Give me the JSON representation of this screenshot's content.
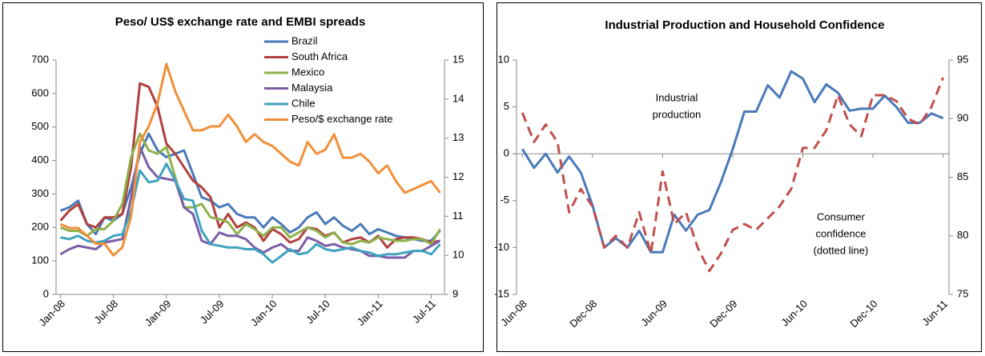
{
  "chart_data": [
    {
      "type": "line",
      "title": "Peso/ US$ exchange rate and EMBI spreads",
      "categories": [
        "Jan-08",
        null,
        null,
        null,
        null,
        null,
        "Jul-08",
        null,
        null,
        null,
        null,
        null,
        "Jan-09",
        null,
        null,
        null,
        null,
        null,
        "Jul-09",
        null,
        null,
        null,
        null,
        null,
        "Jan-10",
        null,
        null,
        null,
        null,
        null,
        "Jul-10",
        null,
        null,
        null,
        null,
        null,
        "Jan-11",
        null,
        null,
        null,
        null,
        null,
        "Jul-11",
        null
      ],
      "ylim": [
        0,
        700
      ],
      "yticks": [
        0,
        100,
        200,
        300,
        400,
        500,
        600,
        700
      ],
      "y2lim": [
        9,
        15
      ],
      "y2ticks": [
        9,
        10,
        11,
        12,
        13,
        14,
        15
      ],
      "grid": false,
      "legend": "top-right",
      "series": [
        {
          "name": "Brazil",
          "color": "#4a7ab8",
          "values": [
            250,
            260,
            280,
            210,
            180,
            230,
            220,
            240,
            320,
            420,
            480,
            430,
            410,
            420,
            430,
            360,
            290,
            280,
            260,
            270,
            240,
            230,
            230,
            200,
            230,
            210,
            185,
            200,
            230,
            245,
            210,
            230,
            205,
            190,
            210,
            180,
            195,
            185,
            175,
            170,
            165,
            160,
            160,
            190
          ]
        },
        {
          "name": "South Africa",
          "color": "#b0413e",
          "values": [
            220,
            250,
            270,
            210,
            200,
            230,
            230,
            240,
            380,
            630,
            620,
            560,
            450,
            420,
            380,
            340,
            320,
            290,
            200,
            240,
            200,
            215,
            200,
            160,
            195,
            180,
            155,
            165,
            200,
            195,
            175,
            185,
            155,
            165,
            170,
            155,
            175,
            140,
            165,
            170,
            170,
            165,
            155,
            160
          ]
        },
        {
          "name": "Mexico",
          "color": "#8fb04a",
          "values": [
            200,
            190,
            190,
            175,
            195,
            195,
            220,
            270,
            410,
            480,
            430,
            420,
            440,
            350,
            260,
            260,
            270,
            230,
            225,
            215,
            180,
            210,
            195,
            175,
            200,
            200,
            170,
            185,
            200,
            190,
            170,
            185,
            155,
            150,
            160,
            155,
            170,
            165,
            160,
            160,
            165,
            165,
            150,
            195
          ]
        },
        {
          "name": "Malaysia",
          "color": "#7b5ea7",
          "values": [
            120,
            135,
            145,
            140,
            135,
            155,
            160,
            165,
            290,
            440,
            380,
            350,
            345,
            340,
            260,
            240,
            160,
            150,
            185,
            175,
            175,
            165,
            140,
            125,
            140,
            150,
            130,
            130,
            170,
            160,
            145,
            150,
            140,
            135,
            130,
            115,
            115,
            110,
            110,
            110,
            130,
            130,
            145,
            160
          ]
        },
        {
          "name": "Chile",
          "color": "#3fa3c0",
          "values": [
            170,
            165,
            175,
            160,
            155,
            160,
            175,
            180,
            250,
            370,
            335,
            340,
            390,
            340,
            285,
            280,
            190,
            150,
            145,
            140,
            140,
            135,
            135,
            120,
            95,
            115,
            135,
            120,
            125,
            150,
            135,
            130,
            135,
            140,
            130,
            125,
            115,
            120,
            120,
            125,
            130,
            130,
            120,
            150
          ]
        },
        {
          "name": "Peso/$ exchange rate",
          "color": "#f0903a",
          "axis": "y2",
          "values": [
            10.8,
            10.7,
            10.7,
            10.5,
            10.3,
            10.3,
            10.0,
            10.2,
            11.0,
            12.9,
            13.3,
            13.9,
            14.9,
            14.2,
            13.7,
            13.2,
            13.2,
            13.3,
            13.3,
            13.6,
            13.3,
            12.9,
            13.1,
            12.9,
            12.8,
            12.6,
            12.4,
            12.3,
            12.9,
            12.6,
            12.7,
            13.1,
            12.5,
            12.5,
            12.6,
            12.4,
            12.1,
            12.3,
            11.9,
            11.6,
            11.7,
            11.8,
            11.9,
            11.6
          ]
        }
      ]
    },
    {
      "type": "line",
      "title": "Industrial Production and Household Confidence",
      "categories": [
        "Jun-08",
        null,
        null,
        null,
        null,
        null,
        "Dec-08",
        null,
        null,
        null,
        null,
        null,
        "Jun-09",
        null,
        null,
        null,
        null,
        null,
        "Dec-09",
        null,
        null,
        null,
        null,
        null,
        "Jun-10",
        null,
        null,
        null,
        null,
        null,
        "Dec-10",
        null,
        null,
        null,
        null,
        null,
        "Jun-11"
      ],
      "ylim": [
        -15,
        10
      ],
      "yticks": [
        -15,
        -10,
        -5,
        0,
        5,
        10
      ],
      "y2lim": [
        75,
        95
      ],
      "y2ticks": [
        75,
        80,
        85,
        90,
        95
      ],
      "grid": false,
      "annotations": [
        {
          "text": [
            "Industrial",
            "production"
          ]
        },
        {
          "text": [
            "Consumer",
            "confidence",
            "(dotted line)"
          ]
        }
      ],
      "series": [
        {
          "color": "#4a7ab8",
          "style": "solid",
          "values": [
            0.5,
            -1.5,
            0,
            -2,
            -0.3,
            -2,
            -5.5,
            -10,
            -9,
            -10,
            -8.2,
            -10.5,
            -10.5,
            -6.5,
            -8.2,
            -6.5,
            -6,
            -3,
            0.5,
            4.5,
            4.5,
            7.3,
            6,
            8.8,
            8,
            5.5,
            7.4,
            6.5,
            4.6,
            4.8,
            4.8,
            6.2,
            5,
            3.3,
            3.3,
            4.3,
            3.8
          ]
        },
        {
          "color": "#c0504d",
          "style": "dashed",
          "axis": "y2",
          "values": [
            90.5,
            88,
            89.5,
            88,
            82,
            84,
            82.5,
            79,
            80,
            79,
            82,
            78.5,
            85.5,
            81,
            82,
            79,
            77,
            78.5,
            80.5,
            81,
            80.5,
            81.5,
            82.5,
            84,
            87.5,
            87.5,
            89,
            92,
            89.5,
            88.5,
            92,
            92,
            91.5,
            90,
            89.5,
            91,
            93.5
          ]
        }
      ]
    }
  ]
}
